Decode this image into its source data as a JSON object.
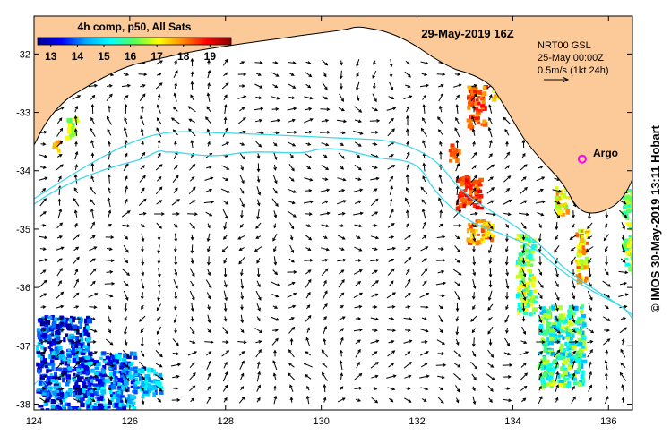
{
  "title": "29-May-2019 16Z",
  "sst_label": "4h comp, p50, All Sats",
  "colorbar": {
    "ticks": [
      "13",
      "14",
      "15",
      "16",
      "17",
      "18",
      "19"
    ],
    "tick_values": [
      13,
      14,
      15,
      16,
      17,
      18,
      19
    ],
    "range": [
      12.5,
      19.8
    ],
    "colors": [
      "#00008f",
      "#0000ff",
      "#00aaff",
      "#00ffff",
      "#55ff55",
      "#ffff00",
      "#ff8800",
      "#ff0000",
      "#8b0000"
    ]
  },
  "current_info": {
    "line1": "NRT00 GSL",
    "line2": "25-May 00:00Z",
    "line3": "0.5m/s (1kt 24h)"
  },
  "argo_label": "Argo",
  "argo_marker": {
    "lon": 135.45,
    "lat": -33.8,
    "color": "#ff00ff"
  },
  "credit": "© IMOS 30-May-2019 13:11 Hobart",
  "axes": {
    "lon_range": [
      124,
      136.5
    ],
    "lat_range": [
      -38.1,
      -31.35
    ],
    "x_ticks": [
      124,
      126,
      128,
      130,
      132,
      134,
      136
    ],
    "x_tick_labels": [
      "124",
      "126",
      "128",
      "130",
      "132",
      "134",
      "136"
    ],
    "y_ticks": [
      -32,
      -33,
      -34,
      -35,
      -36,
      -37,
      -38
    ],
    "y_tick_labels": [
      "-32",
      "-33",
      "-34",
      "-35",
      "-36",
      "-37",
      "-38"
    ]
  },
  "colors": {
    "land": "#fcc998",
    "contour": "#3fd8ea",
    "arrow": "#000000"
  }
}
